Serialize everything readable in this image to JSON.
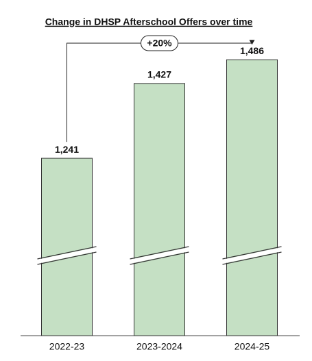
{
  "chart_data": {
    "type": "bar",
    "title": "Change in DHSP Afterschool Offers over time",
    "categories": [
      "2022-23",
      "2023-2024",
      "2024-25"
    ],
    "values": [
      1241,
      1427,
      1486
    ],
    "value_labels": [
      "1,241",
      "1,427",
      "1,486"
    ],
    "color": "#c5e0c4",
    "ylim": [
      800,
      1500
    ],
    "annotation": "+20%"
  }
}
